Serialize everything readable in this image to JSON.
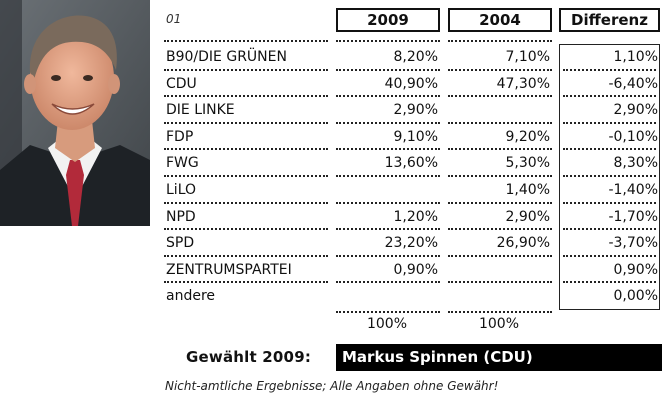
{
  "table": {
    "index_label": "01",
    "headers": {
      "y2009": "2009",
      "y2004": "2004",
      "diff": "Differenz"
    },
    "rows": [
      {
        "party": "B90/DIE GRÜNEN",
        "v2009": "8,20%",
        "v2004": "7,10%",
        "diff": "1,10%"
      },
      {
        "party": "CDU",
        "v2009": "40,90%",
        "v2004": "47,30%",
        "diff": "-6,40%"
      },
      {
        "party": "DIE LINKE",
        "v2009": "2,90%",
        "v2004": "",
        "diff": "2,90%"
      },
      {
        "party": "FDP",
        "v2009": "9,10%",
        "v2004": "9,20%",
        "diff": "-0,10%"
      },
      {
        "party": "FWG",
        "v2009": "13,60%",
        "v2004": "5,30%",
        "diff": "8,30%"
      },
      {
        "party": "LiLO",
        "v2009": "",
        "v2004": "1,40%",
        "diff": "-1,40%"
      },
      {
        "party": "NPD",
        "v2009": "1,20%",
        "v2004": "2,90%",
        "diff": "-1,70%"
      },
      {
        "party": "SPD",
        "v2009": "23,20%",
        "v2004": "26,90%",
        "diff": "-3,70%"
      },
      {
        "party": "ZENTRUMSPARTEI",
        "v2009": "0,90%",
        "v2004": "",
        "diff": "0,90%"
      },
      {
        "party": "andere",
        "v2009": "",
        "v2004": "",
        "diff": "0,00%"
      }
    ],
    "totals": {
      "v2009": "100%",
      "v2004": "100%"
    }
  },
  "elected": {
    "label": "Gewählt 2009:",
    "name": "Markus Spinnen (CDU)"
  },
  "note": "Nicht-amtliche Ergebnisse; Alle Angaben ohne Gewähr!",
  "colors": {
    "text": "#111111",
    "box_bg": "#000000",
    "box_text": "#ffffff"
  }
}
